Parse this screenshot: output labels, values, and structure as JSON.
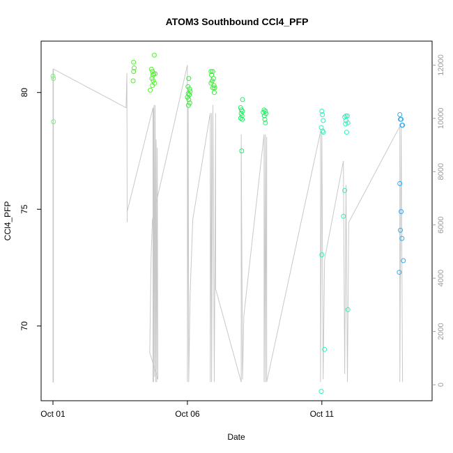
{
  "chart_data": {
    "type": "scatter",
    "title": "ATOM3 Southbound CCl4_PFP",
    "xlabel": "Date",
    "ylabel": "CCl4_PFP",
    "x_ticks": [
      {
        "label": "Oct 01",
        "day": 1
      },
      {
        "label": "Oct 06",
        "day": 6
      },
      {
        "label": "Oct 11",
        "day": 11
      }
    ],
    "xlim": [
      0.56,
      15.1
    ],
    "ylim": [
      66.8,
      82.2
    ],
    "y_ticks": [
      70,
      75,
      80
    ],
    "y2_label": "",
    "y2lim": [
      -600,
      12900
    ],
    "y2_ticks": [
      0,
      2000,
      4000,
      6000,
      8000,
      10000,
      12000
    ],
    "grid": false,
    "legend": "none",
    "colors": {
      "altitude_line": "#c8c8c8",
      "axis": "#000000",
      "right_axis": "#9a9a9a"
    },
    "series": [
      {
        "day": 1.0,
        "color": "#7df07d",
        "points": [
          [
            1.0,
            80.7
          ],
          [
            1.02,
            80.6
          ],
          [
            1.02,
            78.75
          ]
        ]
      },
      {
        "day": 4.0,
        "color": "#55ee33",
        "points": [
          [
            4.0,
            81.3
          ],
          [
            4.02,
            81.05
          ],
          [
            4.0,
            80.9
          ],
          [
            3.98,
            80.5
          ],
          [
            4.77,
            81.6
          ],
          [
            4.66,
            81.0
          ],
          [
            4.7,
            80.9
          ],
          [
            4.75,
            80.8
          ],
          [
            4.8,
            80.8
          ],
          [
            4.72,
            80.75
          ],
          [
            4.68,
            80.6
          ],
          [
            4.73,
            80.5
          ],
          [
            4.78,
            80.4
          ],
          [
            4.7,
            80.3
          ],
          [
            4.62,
            80.1
          ]
        ]
      },
      {
        "day": 6.0,
        "color": "#33ee33",
        "points": [
          [
            6.05,
            80.6
          ],
          [
            6.02,
            80.25
          ],
          [
            6.08,
            80.15
          ],
          [
            6.1,
            80.05
          ],
          [
            6.03,
            79.95
          ],
          [
            6.07,
            79.9
          ],
          [
            6.0,
            79.8
          ],
          [
            6.05,
            79.7
          ],
          [
            6.09,
            79.55
          ],
          [
            6.04,
            79.45
          ],
          [
            6.88,
            80.9
          ],
          [
            6.94,
            80.9
          ],
          [
            6.9,
            80.75
          ],
          [
            6.97,
            80.6
          ],
          [
            6.92,
            80.5
          ],
          [
            6.88,
            80.4
          ],
          [
            6.99,
            80.3
          ],
          [
            7.02,
            80.2
          ],
          [
            6.95,
            80.2
          ],
          [
            7.0,
            80.0
          ]
        ]
      },
      {
        "day": 8.0,
        "color": "#22ee66",
        "points": [
          [
            8.05,
            79.7
          ],
          [
            7.98,
            79.35
          ],
          [
            8.01,
            79.25
          ],
          [
            8.05,
            79.2
          ],
          [
            8.0,
            79.1
          ],
          [
            8.03,
            79.0
          ],
          [
            7.98,
            78.9
          ],
          [
            8.04,
            78.85
          ],
          [
            8.02,
            77.5
          ],
          [
            8.85,
            79.25
          ],
          [
            8.9,
            79.2
          ],
          [
            8.82,
            79.15
          ],
          [
            8.92,
            79.1
          ],
          [
            8.86,
            79.0
          ],
          [
            8.88,
            78.85
          ],
          [
            8.9,
            78.7
          ]
        ]
      },
      {
        "day": 11.0,
        "color": "#33eebb",
        "points": [
          [
            11.0,
            79.2
          ],
          [
            11.02,
            79.05
          ],
          [
            11.05,
            78.8
          ],
          [
            10.98,
            78.5
          ],
          [
            11.03,
            78.35
          ],
          [
            11.06,
            78.3
          ],
          [
            11.0,
            73.05
          ],
          [
            11.1,
            69.0
          ],
          [
            10.98,
            67.2
          ],
          [
            11.9,
            79.0
          ],
          [
            11.95,
            79.0
          ],
          [
            11.85,
            78.95
          ],
          [
            11.9,
            78.8
          ],
          [
            11.97,
            78.7
          ],
          [
            11.88,
            78.65
          ],
          [
            11.92,
            78.3
          ],
          [
            11.85,
            75.8
          ],
          [
            11.8,
            74.7
          ],
          [
            11.97,
            70.7
          ]
        ]
      },
      {
        "day": 14.0,
        "color": "#33aaee",
        "points": [
          [
            13.9,
            79.05
          ],
          [
            13.92,
            78.85
          ],
          [
            13.95,
            78.85
          ],
          [
            13.98,
            78.6
          ],
          [
            14.0,
            78.6
          ],
          [
            13.9,
            76.1
          ],
          [
            13.95,
            74.9
          ],
          [
            13.92,
            74.1
          ],
          [
            13.98,
            73.75
          ],
          [
            14.03,
            72.8
          ],
          [
            13.88,
            72.3
          ]
        ]
      }
    ],
    "altitude_profile": [
      [
        1.0,
        11850
      ],
      [
        1.0,
        100
      ],
      [
        1.02,
        100
      ],
      [
        1.02,
        11850
      ],
      [
        3.72,
        10400
      ],
      [
        3.75,
        11700
      ],
      [
        3.76,
        6100
      ],
      [
        3.76,
        6500
      ],
      [
        4.72,
        10400
      ],
      [
        4.72,
        100
      ],
      [
        4.74,
        10400
      ],
      [
        4.74,
        100
      ],
      [
        4.76,
        10500
      ],
      [
        4.78,
        300
      ],
      [
        4.8,
        10500
      ],
      [
        4.82,
        100
      ],
      [
        4.84,
        9200
      ],
      [
        4.86,
        100
      ],
      [
        4.88,
        8900
      ],
      [
        4.9,
        200
      ],
      [
        4.6,
        1200
      ],
      [
        4.65,
        4800
      ],
      [
        4.7,
        6200
      ],
      [
        6.0,
        12000
      ],
      [
        6.0,
        100
      ],
      [
        6.03,
        10400
      ],
      [
        6.05,
        100
      ],
      [
        6.1,
        3400
      ],
      [
        6.2,
        6200
      ],
      [
        6.85,
        10200
      ],
      [
        6.85,
        100
      ],
      [
        6.9,
        10200
      ],
      [
        6.9,
        100
      ],
      [
        6.95,
        10500
      ],
      [
        7.0,
        100
      ],
      [
        7.05,
        10200
      ],
      [
        7.05,
        3600
      ],
      [
        8.0,
        100
      ],
      [
        8.0,
        9400
      ],
      [
        8.05,
        200
      ],
      [
        8.1,
        2600
      ],
      [
        8.85,
        9400
      ],
      [
        8.85,
        100
      ],
      [
        8.9,
        9400
      ],
      [
        8.9,
        100
      ],
      [
        8.95,
        9300
      ],
      [
        8.95,
        100
      ],
      [
        10.95,
        9500
      ],
      [
        10.95,
        100
      ],
      [
        11.0,
        9500
      ],
      [
        11.05,
        200
      ],
      [
        11.1,
        4700
      ],
      [
        11.8,
        8400
      ],
      [
        11.85,
        400
      ],
      [
        11.9,
        7500
      ],
      [
        11.95,
        100
      ],
      [
        12.0,
        6100
      ],
      [
        13.9,
        9700
      ],
      [
        13.9,
        100
      ],
      [
        13.95,
        9700
      ],
      [
        14.0,
        100
      ]
    ]
  }
}
